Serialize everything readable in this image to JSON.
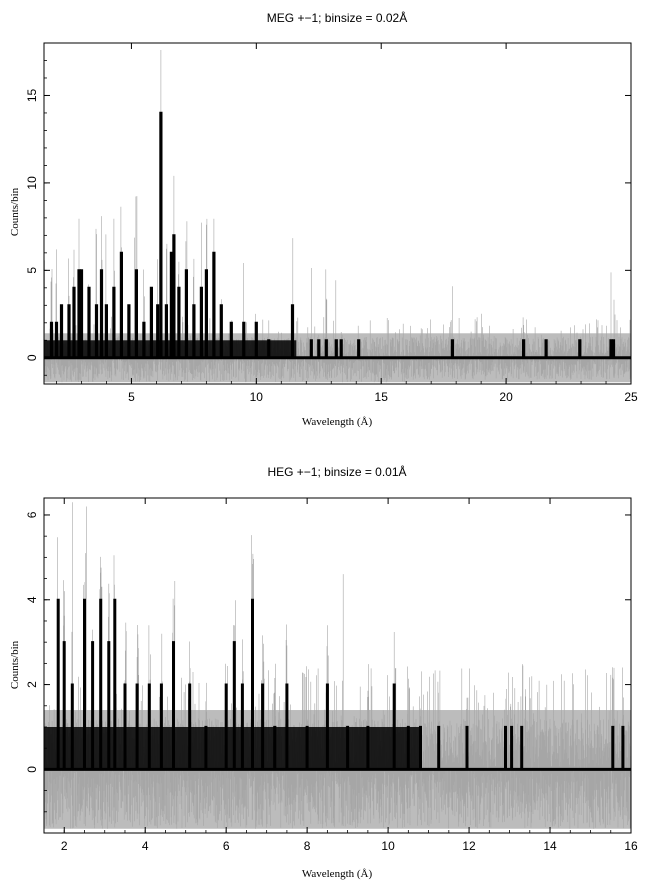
{
  "chart_data": [
    {
      "type": "histogram",
      "title": "MEG +−1; binsize = 0.02Å",
      "xlabel": "Wavelength (Å)",
      "ylabel": "Counts/bin",
      "xlim": [
        1.5,
        25
      ],
      "ylim": [
        -1.5,
        18
      ],
      "xticks": [
        5,
        10,
        15,
        20,
        25
      ],
      "yticks": [
        0,
        5,
        10,
        15
      ],
      "series": [
        {
          "style": "gray-noise",
          "color": "#a6a6a6",
          "band": [
            -1.4,
            1.4
          ],
          "max_spike": 17.6
        },
        {
          "style": "black-histogram",
          "color": "#000000",
          "peaks": [
            {
              "x": 1.8,
              "y": 2
            },
            {
              "x": 2.0,
              "y": 2
            },
            {
              "x": 2.2,
              "y": 3
            },
            {
              "x": 2.5,
              "y": 3
            },
            {
              "x": 2.7,
              "y": 4
            },
            {
              "x": 2.9,
              "y": 5
            },
            {
              "x": 3.0,
              "y": 5
            },
            {
              "x": 3.3,
              "y": 4
            },
            {
              "x": 3.6,
              "y": 3
            },
            {
              "x": 3.8,
              "y": 5
            },
            {
              "x": 4.0,
              "y": 3
            },
            {
              "x": 4.3,
              "y": 4
            },
            {
              "x": 4.6,
              "y": 6
            },
            {
              "x": 4.9,
              "y": 3
            },
            {
              "x": 5.2,
              "y": 5
            },
            {
              "x": 5.5,
              "y": 2
            },
            {
              "x": 5.8,
              "y": 4
            },
            {
              "x": 6.05,
              "y": 3
            },
            {
              "x": 6.18,
              "y": 14
            },
            {
              "x": 6.4,
              "y": 3
            },
            {
              "x": 6.6,
              "y": 6
            },
            {
              "x": 6.7,
              "y": 7
            },
            {
              "x": 6.9,
              "y": 4
            },
            {
              "x": 7.2,
              "y": 5
            },
            {
              "x": 7.5,
              "y": 3
            },
            {
              "x": 7.8,
              "y": 4
            },
            {
              "x": 8.0,
              "y": 5
            },
            {
              "x": 8.3,
              "y": 6
            },
            {
              "x": 8.6,
              "y": 3
            },
            {
              "x": 9.0,
              "y": 2
            },
            {
              "x": 9.5,
              "y": 2
            },
            {
              "x": 10.0,
              "y": 2
            },
            {
              "x": 10.5,
              "y": 1
            },
            {
              "x": 11.45,
              "y": 3
            },
            {
              "x": 12.2,
              "y": 1
            },
            {
              "x": 12.5,
              "y": 1
            },
            {
              "x": 12.8,
              "y": 1
            },
            {
              "x": 13.2,
              "y": 1
            },
            {
              "x": 13.4,
              "y": 1
            },
            {
              "x": 14.1,
              "y": 1
            },
            {
              "x": 17.85,
              "y": 1
            },
            {
              "x": 20.7,
              "y": 1
            },
            {
              "x": 21.6,
              "y": 1
            },
            {
              "x": 22.95,
              "y": 1
            },
            {
              "x": 24.2,
              "y": 1
            },
            {
              "x": 24.3,
              "y": 1
            }
          ]
        }
      ],
      "grid": false,
      "legend": "none"
    },
    {
      "type": "histogram",
      "title": "HEG +−1; binsize = 0.01Å",
      "xlabel": "Wavelength (Å)",
      "ylabel": "Counts/bin",
      "xlim": [
        1.5,
        16
      ],
      "ylim": [
        -1.5,
        6.4
      ],
      "xticks": [
        2,
        4,
        6,
        8,
        10,
        12,
        14,
        16
      ],
      "yticks": [
        0,
        2,
        4,
        6
      ],
      "series": [
        {
          "style": "gray-noise",
          "color": "#a6a6a6",
          "band": [
            -1.4,
            1.4
          ],
          "max_spike": 6.2
        },
        {
          "style": "black-histogram",
          "color": "#000000",
          "peaks": [
            {
              "x": 1.85,
              "y": 4
            },
            {
              "x": 2.0,
              "y": 3
            },
            {
              "x": 2.2,
              "y": 2
            },
            {
              "x": 2.5,
              "y": 4
            },
            {
              "x": 2.7,
              "y": 3
            },
            {
              "x": 2.9,
              "y": 4
            },
            {
              "x": 3.1,
              "y": 3
            },
            {
              "x": 3.25,
              "y": 4
            },
            {
              "x": 3.5,
              "y": 2
            },
            {
              "x": 3.8,
              "y": 2
            },
            {
              "x": 4.1,
              "y": 2
            },
            {
              "x": 4.4,
              "y": 2
            },
            {
              "x": 4.7,
              "y": 3
            },
            {
              "x": 5.1,
              "y": 2
            },
            {
              "x": 5.5,
              "y": 1
            },
            {
              "x": 6.0,
              "y": 2
            },
            {
              "x": 6.2,
              "y": 3
            },
            {
              "x": 6.4,
              "y": 2
            },
            {
              "x": 6.65,
              "y": 4
            },
            {
              "x": 6.9,
              "y": 2
            },
            {
              "x": 7.2,
              "y": 1
            },
            {
              "x": 7.5,
              "y": 2
            },
            {
              "x": 8.0,
              "y": 1
            },
            {
              "x": 8.5,
              "y": 2
            },
            {
              "x": 9.0,
              "y": 1
            },
            {
              "x": 9.5,
              "y": 1
            },
            {
              "x": 10.15,
              "y": 2
            },
            {
              "x": 10.5,
              "y": 1
            },
            {
              "x": 10.8,
              "y": 1
            },
            {
              "x": 11.25,
              "y": 1
            },
            {
              "x": 11.95,
              "y": 1
            },
            {
              "x": 12.9,
              "y": 1
            },
            {
              "x": 13.05,
              "y": 1
            },
            {
              "x": 13.3,
              "y": 1
            },
            {
              "x": 15.55,
              "y": 1
            },
            {
              "x": 15.8,
              "y": 1
            }
          ]
        }
      ],
      "grid": false,
      "legend": "none"
    }
  ]
}
